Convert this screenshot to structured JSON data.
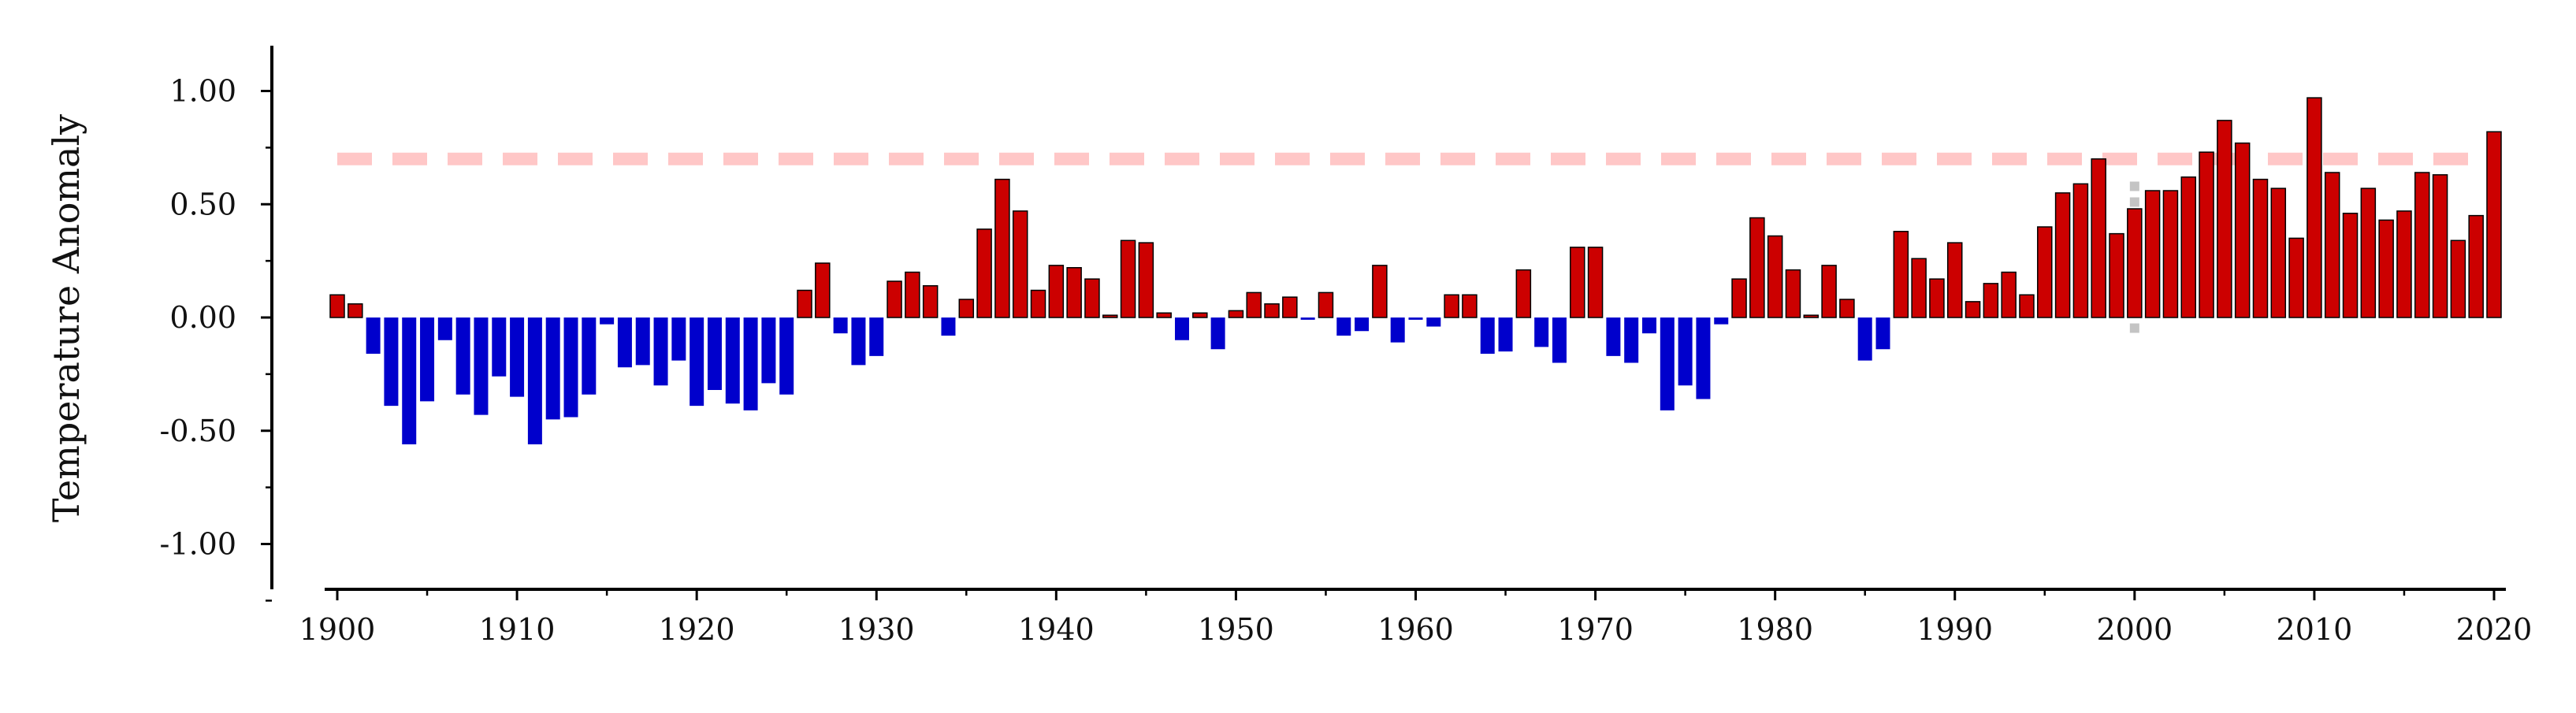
{
  "chart_data": {
    "type": "bar",
    "title": "",
    "xlabel": "",
    "ylabel": "Temperature Anomaly",
    "x": [
      1900,
      1901,
      1902,
      1903,
      1904,
      1905,
      1906,
      1907,
      1908,
      1909,
      1910,
      1911,
      1912,
      1913,
      1914,
      1915,
      1916,
      1917,
      1918,
      1919,
      1920,
      1921,
      1922,
      1923,
      1924,
      1925,
      1926,
      1927,
      1928,
      1929,
      1930,
      1931,
      1932,
      1933,
      1934,
      1935,
      1936,
      1937,
      1938,
      1939,
      1940,
      1941,
      1942,
      1943,
      1944,
      1945,
      1946,
      1947,
      1948,
      1949,
      1950,
      1951,
      1952,
      1953,
      1954,
      1955,
      1956,
      1957,
      1958,
      1959,
      1960,
      1961,
      1962,
      1963,
      1964,
      1965,
      1966,
      1967,
      1968,
      1969,
      1970,
      1971,
      1972,
      1973,
      1974,
      1975,
      1976,
      1977,
      1978,
      1979,
      1980,
      1981,
      1982,
      1983,
      1984,
      1985,
      1986,
      1987,
      1988,
      1989,
      1990,
      1991,
      1992,
      1993,
      1994,
      1995,
      1996,
      1997,
      1998,
      1999,
      2000,
      2001,
      2002,
      2003,
      2004,
      2005,
      2006,
      2007,
      2008,
      2009,
      2010,
      2011,
      2012,
      2013,
      2014,
      2015,
      2016,
      2017,
      2018,
      2019,
      2020
    ],
    "values": [
      0.1,
      0.06,
      -0.16,
      -0.39,
      -0.56,
      -0.37,
      -0.1,
      -0.34,
      -0.43,
      -0.26,
      -0.35,
      -0.56,
      -0.45,
      -0.44,
      -0.34,
      -0.03,
      -0.22,
      -0.21,
      -0.3,
      -0.19,
      -0.39,
      -0.32,
      -0.38,
      -0.41,
      -0.29,
      -0.34,
      0.12,
      0.24,
      -0.07,
      -0.21,
      -0.17,
      0.16,
      0.2,
      0.14,
      -0.08,
      0.08,
      0.39,
      0.61,
      0.47,
      0.12,
      0.23,
      0.22,
      0.17,
      0.01,
      0.34,
      0.33,
      0.02,
      -0.1,
      0.02,
      -0.14,
      0.03,
      0.11,
      0.06,
      0.09,
      -0.01,
      0.11,
      -0.08,
      -0.06,
      0.23,
      -0.11,
      -0.01,
      -0.04,
      0.1,
      0.1,
      -0.16,
      -0.15,
      0.21,
      -0.13,
      -0.2,
      0.31,
      0.31,
      -0.17,
      -0.2,
      -0.07,
      -0.41,
      -0.3,
      -0.36,
      -0.03,
      0.17,
      0.44,
      0.36,
      0.21,
      0.01,
      0.23,
      0.08,
      -0.19,
      -0.14,
      0.38,
      0.26,
      0.17,
      0.33,
      0.07,
      0.15,
      0.2,
      0.1,
      0.4,
      0.55,
      0.59,
      0.7,
      0.37,
      0.48,
      0.56,
      0.56,
      0.62,
      0.73,
      0.87,
      0.77,
      0.61,
      0.57,
      0.35,
      0.97,
      0.64,
      0.46,
      0.57,
      0.43,
      0.47,
      0.64,
      0.63,
      0.34,
      0.45,
      0.82
    ],
    "xlim": [
      1900,
      2020
    ],
    "ylim": [
      -1.2,
      1.2
    ],
    "x_ticks": [
      1900,
      1910,
      1920,
      1930,
      1940,
      1950,
      1960,
      1970,
      1980,
      1990,
      2000,
      2010,
      2020
    ],
    "x_tick_labels": [
      "1900",
      "1910",
      "1920",
      "1930",
      "1940",
      "1950",
      "1960",
      "1970",
      "1980",
      "1990",
      "2000",
      "2010",
      "2020"
    ],
    "y_ticks": [
      -1.0,
      -0.5,
      0.0,
      0.5,
      1.0
    ],
    "y_tick_labels": [
      "-1.00",
      "-0.50",
      "0.00",
      "0.50",
      "1.00"
    ],
    "y_minor_ticks": [
      -1.25,
      -0.75,
      -0.25,
      0.25,
      0.75
    ],
    "reference_lines": [
      {
        "orientation": "horizontal",
        "value": 0.7,
        "style": "dashed",
        "color": "#ffc7c7"
      },
      {
        "orientation": "vertical",
        "value": 2000,
        "style": "dotted",
        "color": "#c4c4c4",
        "from_y": 0.0,
        "to_y": 0.6
      }
    ],
    "colors": {
      "positive": "#cc0000",
      "negative": "#0000cc",
      "positive_edge": "#000000",
      "axis": "#000000"
    },
    "grid": false,
    "legend": "none"
  }
}
